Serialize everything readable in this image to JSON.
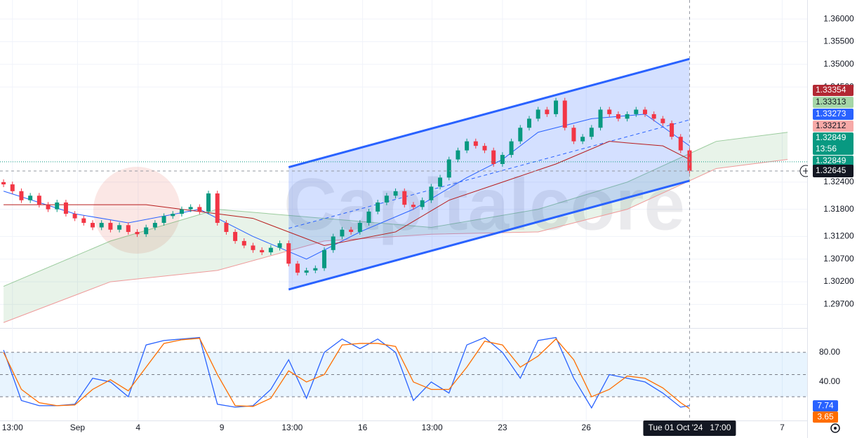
{
  "chart_data": [
    {
      "type": "candlestick",
      "watermark": "Capitalcore",
      "xlim": [
        -0.4,
        90.2
      ],
      "ylim": [
        1.2918,
        1.3642
      ],
      "xticks": [
        {
          "value": 1,
          "label": "13:00"
        },
        {
          "value": 8.3,
          "label": "Sep"
        },
        {
          "value": 15.1,
          "label": "4"
        },
        {
          "value": 24.5,
          "label": "9"
        },
        {
          "value": 32.4,
          "label": "13:00"
        },
        {
          "value": 40.3,
          "label": "16"
        },
        {
          "value": 48.1,
          "label": "13:00"
        },
        {
          "value": 56,
          "label": "23"
        },
        {
          "value": 65.4,
          "label": "26"
        },
        {
          "value": 87.4,
          "label": "7"
        }
      ],
      "yticks": [
        {
          "value": 1.36,
          "label": "1.36000"
        },
        {
          "value": 1.355,
          "label": "1.35500"
        },
        {
          "value": 1.35,
          "label": "1.35000"
        },
        {
          "value": 1.345,
          "label": "1.34500"
        },
        {
          "value": 1.324,
          "label": "1.32400"
        },
        {
          "value": 1.318,
          "label": "1.31800"
        },
        {
          "value": 1.312,
          "label": "1.31200"
        },
        {
          "value": 1.307,
          "label": "1.30700"
        },
        {
          "value": 1.302,
          "label": "1.30200"
        },
        {
          "value": 1.297,
          "label": "1.29700"
        }
      ],
      "up_color": "#089981",
      "down_color": "#f23645",
      "x": [
        0,
        1,
        2,
        3,
        4,
        5,
        6,
        7,
        8,
        9,
        10,
        11,
        12,
        13,
        14,
        15,
        16,
        17,
        18,
        19,
        20,
        21,
        22,
        23,
        24,
        25,
        26,
        27,
        28,
        29,
        30,
        31,
        32,
        33,
        34,
        35,
        36,
        37,
        38,
        39,
        40,
        41,
        42,
        43,
        44,
        45,
        46,
        47,
        48,
        49,
        50,
        51,
        52,
        53,
        54,
        55,
        56,
        57,
        58,
        59,
        60,
        61,
        62,
        63,
        64,
        65,
        66,
        67,
        68,
        69,
        70,
        71,
        72,
        73,
        74,
        75,
        76,
        77
      ],
      "open": [
        1.324,
        1.3235,
        1.322,
        1.32,
        1.321,
        1.319,
        1.318,
        1.3195,
        1.317,
        1.316,
        1.315,
        1.314,
        1.315,
        1.3135,
        1.3145,
        1.313,
        1.3125,
        1.314,
        1.315,
        1.3165,
        1.317,
        1.318,
        1.3185,
        1.3175,
        1.3215,
        1.315,
        1.313,
        1.311,
        1.31,
        1.309,
        1.3085,
        1.3095,
        1.3105,
        1.306,
        1.304,
        1.3045,
        1.305,
        1.309,
        1.312,
        1.3135,
        1.313,
        1.315,
        1.3175,
        1.3195,
        1.321,
        1.322,
        1.319,
        1.3185,
        1.32,
        1.323,
        1.325,
        1.329,
        1.331,
        1.333,
        1.332,
        1.331,
        1.328,
        1.33,
        1.333,
        1.336,
        1.338,
        1.34,
        1.339,
        1.342,
        1.336,
        1.333,
        1.334,
        1.336,
        1.34,
        1.339,
        1.338,
        1.339,
        1.34,
        1.339,
        1.338,
        1.337,
        1.334,
        1.331
      ],
      "high": [
        1.3246,
        1.3241,
        1.3226,
        1.3216,
        1.3216,
        1.3196,
        1.3201,
        1.3201,
        1.3176,
        1.3166,
        1.3156,
        1.3156,
        1.3156,
        1.3151,
        1.3151,
        1.3136,
        1.3146,
        1.3156,
        1.3171,
        1.3176,
        1.3186,
        1.3191,
        1.3191,
        1.3221,
        1.3221,
        1.3156,
        1.3136,
        1.3116,
        1.3106,
        1.3096,
        1.3101,
        1.3111,
        1.3111,
        1.3066,
        1.3051,
        1.3056,
        1.3096,
        1.3126,
        1.3141,
        1.3141,
        1.3156,
        1.3181,
        1.3201,
        1.3216,
        1.3226,
        1.3226,
        1.3196,
        1.3206,
        1.3236,
        1.3256,
        1.3296,
        1.3316,
        1.3336,
        1.3336,
        1.3326,
        1.3316,
        1.3306,
        1.3336,
        1.3366,
        1.3386,
        1.3406,
        1.3406,
        1.3426,
        1.3426,
        1.3366,
        1.3346,
        1.3366,
        1.3406,
        1.3406,
        1.3396,
        1.3396,
        1.3406,
        1.3406,
        1.3396,
        1.3386,
        1.3376,
        1.3346,
        1.3316
      ],
      "low": [
        1.3229,
        1.3214,
        1.3194,
        1.3194,
        1.3184,
        1.3174,
        1.3174,
        1.3164,
        1.3154,
        1.3144,
        1.3134,
        1.3134,
        1.3129,
        1.3129,
        1.3124,
        1.3119,
        1.3119,
        1.3134,
        1.3144,
        1.3159,
        1.3164,
        1.3174,
        1.3169,
        1.3169,
        1.3144,
        1.3124,
        1.3104,
        1.3094,
        1.3084,
        1.3079,
        1.3079,
        1.3089,
        1.3054,
        1.3034,
        1.3034,
        1.3039,
        1.3044,
        1.3084,
        1.3114,
        1.3124,
        1.3124,
        1.3144,
        1.3169,
        1.3189,
        1.3204,
        1.3184,
        1.3179,
        1.3179,
        1.3194,
        1.3224,
        1.3244,
        1.3284,
        1.3304,
        1.3314,
        1.3304,
        1.3274,
        1.3274,
        1.3294,
        1.3324,
        1.3354,
        1.3374,
        1.3384,
        1.3384,
        1.3354,
        1.3324,
        1.3324,
        1.3334,
        1.3354,
        1.3384,
        1.3374,
        1.3374,
        1.3384,
        1.3384,
        1.3374,
        1.3364,
        1.3334,
        1.3304,
        1.3259
      ],
      "close": [
        1.3235,
        1.322,
        1.32,
        1.321,
        1.319,
        1.318,
        1.3195,
        1.317,
        1.316,
        1.315,
        1.314,
        1.315,
        1.3135,
        1.3145,
        1.313,
        1.3125,
        1.314,
        1.315,
        1.3165,
        1.317,
        1.318,
        1.3185,
        1.3175,
        1.3215,
        1.315,
        1.313,
        1.311,
        1.31,
        1.309,
        1.3085,
        1.3095,
        1.3105,
        1.306,
        1.304,
        1.3045,
        1.305,
        1.309,
        1.312,
        1.3135,
        1.313,
        1.315,
        1.3175,
        1.3195,
        1.321,
        1.322,
        1.319,
        1.3185,
        1.32,
        1.323,
        1.325,
        1.329,
        1.331,
        1.333,
        1.332,
        1.331,
        1.328,
        1.33,
        1.333,
        1.336,
        1.338,
        1.34,
        1.339,
        1.342,
        1.336,
        1.333,
        1.334,
        1.336,
        1.34,
        1.339,
        1.338,
        1.339,
        1.34,
        1.339,
        1.338,
        1.337,
        1.334,
        1.331,
        1.3265
      ],
      "lines": [
        {
          "color": "#2962ff",
          "x": [
            0,
            8,
            14,
            22,
            28,
            34,
            40,
            46,
            52,
            56,
            60,
            66,
            72,
            77
          ],
          "values": [
            1.322,
            1.317,
            1.315,
            1.318,
            1.312,
            1.307,
            1.313,
            1.318,
            1.325,
            1.329,
            1.335,
            1.338,
            1.339,
            1.332
          ]
        },
        {
          "color": "#b71c1c",
          "x": [
            0,
            16,
            28,
            36,
            44,
            50,
            56,
            62,
            68,
            74,
            77
          ],
          "values": [
            1.319,
            1.319,
            1.316,
            1.31,
            1.313,
            1.32,
            1.324,
            1.328,
            1.333,
            1.332,
            1.329
          ]
        }
      ],
      "cloud": {
        "color": "#43a047",
        "x": [
          0,
          12,
          24,
          36,
          48,
          60,
          70,
          80,
          88
        ],
        "upper": [
          1.301,
          1.311,
          1.318,
          1.316,
          1.314,
          1.318,
          1.324,
          1.333,
          1.335
        ],
        "lower": [
          1.293,
          1.302,
          1.3045,
          1.311,
          1.3125,
          1.313,
          1.318,
          1.327,
          1.329
        ]
      },
      "channel": {
        "color": "#2962ff",
        "x": [
          32,
          77
        ],
        "upper": [
          1.3273,
          1.3512
        ],
        "lower": [
          1.3003,
          1.3243
        ]
      },
      "last_price": 1.32849,
      "countdown": "13:56",
      "price_tags": [
        {
          "value": 1.33354,
          "color": "#b22833"
        },
        {
          "value": 1.33313,
          "color": "#a5d6a7"
        },
        {
          "value": 1.33273,
          "color": "#2962ff"
        },
        {
          "value": 1.33212,
          "color": "#f7a9a7"
        },
        {
          "value": 1.32849,
          "color": "#089981"
        },
        {
          "value": 1.32849,
          "color": "#089981"
        }
      ],
      "crosshair": {
        "x": 77,
        "value": 1.32645,
        "label": "Tue 01 Oct '24   17:00"
      }
    },
    {
      "type": "stochastic",
      "ylim": [
        -12,
        111
      ],
      "yticks": [
        {
          "value": 80,
          "label": "80.00"
        },
        {
          "value": 40,
          "label": "40.00"
        }
      ],
      "levels": [
        80,
        50,
        20
      ],
      "x": [
        0,
        2,
        4,
        6,
        8,
        10,
        12,
        14,
        16,
        18,
        20,
        22,
        24,
        26,
        28,
        30,
        32,
        34,
        36,
        38,
        40,
        42,
        44,
        46,
        48,
        50,
        52,
        54,
        56,
        58,
        60,
        62,
        64,
        66,
        68,
        70,
        72,
        74,
        76,
        77
      ],
      "series": [
        {
          "color": "#2962ff",
          "values": [
            83,
            15,
            8,
            8,
            10,
            45,
            40,
            20,
            90,
            96,
            98,
            100,
            10,
            6,
            8,
            30,
            70,
            18,
            80,
            98,
            85,
            98,
            80,
            15,
            40,
            25,
            90,
            100,
            80,
            45,
            96,
            100,
            45,
            5,
            50,
            45,
            40,
            25,
            6,
            8
          ]
        },
        {
          "color": "#ff6d00",
          "values": [
            80,
            30,
            12,
            8,
            9,
            30,
            43,
            28,
            60,
            92,
            97,
            99,
            50,
            8,
            7,
            18,
            55,
            40,
            50,
            90,
            92,
            92,
            88,
            40,
            30,
            30,
            60,
            95,
            90,
            60,
            75,
            98,
            70,
            20,
            30,
            48,
            45,
            32,
            12,
            4
          ]
        }
      ],
      "tags": [
        {
          "value": 7.74,
          "color": "#2962ff"
        },
        {
          "value": 3.65,
          "color": "#ff6d00"
        }
      ]
    }
  ]
}
